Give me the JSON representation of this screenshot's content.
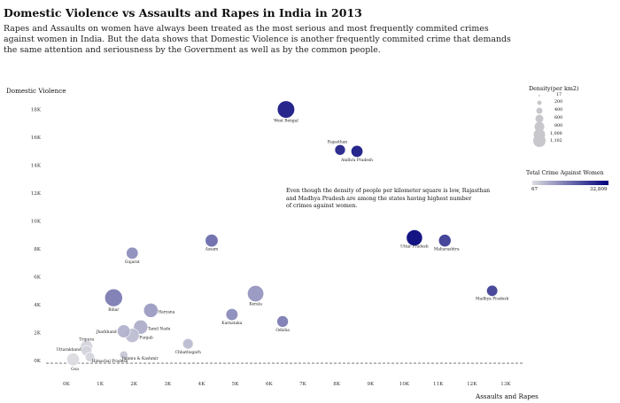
{
  "title": "Domestic Violence vs Assaults and Rapes in India in 2013",
  "subtitle": [
    "Rapes and Assaults on women have always been treated as the most serious and most frequently commited crimes",
    "against women in India. But the data shows that Domestic Violence is another frequently commited crime that demands",
    "the same attention and seriousness by the Government as well as by the common people."
  ],
  "annotation": [
    "Even though the density of people per kilometer square is low, Rajasthan",
    "and Madhya Pradesh are among the states having highest number",
    "of crimes against women."
  ],
  "legend_size": {
    "title": "Density(per km2)",
    "items": [
      "17",
      "200",
      "400",
      "600",
      "800",
      "1,000",
      "1,102"
    ]
  },
  "legend_color": {
    "title": "Total Crime Against Women",
    "min": "67",
    "max": "32,809",
    "color_low": "#dcdce0",
    "color_high": "#00007a"
  },
  "chart_data": {
    "type": "scatter",
    "title": "Domestic Violence vs Assaults and Rapes in India in 2013",
    "xlabel": "Assaults and Rapes",
    "ylabel": "Domestic Violence",
    "xlim": [
      -600,
      13500
    ],
    "ylim": [
      -250,
      19500
    ],
    "x_ticks": [
      0,
      1000,
      2000,
      3000,
      4000,
      5000,
      6000,
      7000,
      8000,
      9000,
      10000,
      11000,
      12000,
      13000
    ],
    "x_tick_labels": [
      "0K",
      "1K",
      "2K",
      "3K",
      "4K",
      "5K",
      "6K",
      "7K",
      "8K",
      "9K",
      "10K",
      "11K",
      "12K",
      "13K"
    ],
    "y_ticks": [
      0,
      2000,
      4000,
      6000,
      8000,
      10000,
      12000,
      14000,
      16000,
      18000
    ],
    "y_tick_labels": [
      "0K",
      "2K",
      "4K",
      "6K",
      "8K",
      "10K",
      "12K",
      "14K",
      "16K",
      "18K"
    ],
    "grid": false,
    "size_encoding": "Density(per km2)",
    "color_encoding": "Total Crime Against Women",
    "points": [
      {
        "label": "West Bengal",
        "x": 6500,
        "y": 18000,
        "density": 1029,
        "crime": 29800
      },
      {
        "label": "Rajasthan",
        "x": 8100,
        "y": 15100,
        "density": 200,
        "crime": 28500
      },
      {
        "label": "Andhra Pradesh",
        "x": 8600,
        "y": 15000,
        "density": 308,
        "crime": 30000
      },
      {
        "label": "Uttar Pradesh",
        "x": 10300,
        "y": 8800,
        "density": 828,
        "crime": 32809
      },
      {
        "label": "Maharashtra",
        "x": 11200,
        "y": 8600,
        "density": 365,
        "crime": 24800
      },
      {
        "label": "Madhya Pradesh",
        "x": 12600,
        "y": 5000,
        "density": 236,
        "crime": 24100
      },
      {
        "label": "Assam",
        "x": 4300,
        "y": 8600,
        "density": 398,
        "crime": 17400
      },
      {
        "label": "Gujarat",
        "x": 1950,
        "y": 7700,
        "density": 308,
        "crime": 12100
      },
      {
        "label": "Bihar",
        "x": 1400,
        "y": 4500,
        "density": 1102,
        "crime": 15000
      },
      {
        "label": "Haryana",
        "x": 2500,
        "y": 3600,
        "density": 573,
        "crime": 10000
      },
      {
        "label": "Kerala",
        "x": 5600,
        "y": 4800,
        "density": 860,
        "crime": 11000
      },
      {
        "label": "Karnataka",
        "x": 4900,
        "y": 3300,
        "density": 319,
        "crime": 12400
      },
      {
        "label": "Odisha",
        "x": 6400,
        "y": 2800,
        "density": 270,
        "crime": 14700
      },
      {
        "label": "Tamil Nadu",
        "x": 2200,
        "y": 2400,
        "density": 555,
        "crime": 7400
      },
      {
        "label": "Jharkhand",
        "x": 1700,
        "y": 2100,
        "density": 414,
        "crime": 6600
      },
      {
        "label": "Punjab",
        "x": 1950,
        "y": 1800,
        "density": 550,
        "crime": 5000
      },
      {
        "label": "Chhattisgarh",
        "x": 3600,
        "y": 1200,
        "density": 189,
        "crime": 5200
      },
      {
        "label": "Tripura",
        "x": 600,
        "y": 1000,
        "density": 350,
        "crime": 1600
      },
      {
        "label": "Uttarakhand",
        "x": 600,
        "y": 700,
        "density": 189,
        "crime": 1400
      },
      {
        "label": "Jammu & Kashmir",
        "x": 1700,
        "y": 400,
        "density": 56,
        "crime": 3300
      },
      {
        "label": "Himachal Pradesh",
        "x": 700,
        "y": 250,
        "density": 123,
        "crime": 1200
      },
      {
        "label": "Goa",
        "x": 200,
        "y": 80,
        "density": 394,
        "crime": 300
      }
    ]
  }
}
